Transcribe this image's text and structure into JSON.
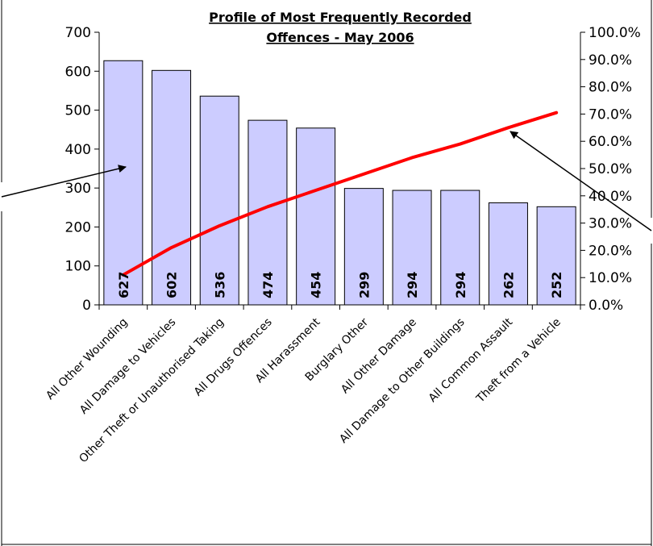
{
  "chart_data": {
    "type": "bar",
    "title": [
      "Profile of Most Frequently Recorded",
      "Offences - May 2006"
    ],
    "categories": [
      "All Other Wounding",
      "All Damage to Vehicles",
      "Other Theft or Unauthorised Taking",
      "All Drugs Offences",
      "All Harassment",
      "Burglary Other",
      "All Other Damage",
      "All Damage to Other Buildings",
      "All Common Assault",
      "Theft from a Vehicle"
    ],
    "values": [
      627,
      602,
      536,
      474,
      454,
      299,
      294,
      294,
      262,
      252
    ],
    "data_labels": [
      "627",
      "602",
      "536",
      "474",
      "454",
      "299",
      "294",
      "294",
      "262",
      "252"
    ],
    "line_series": [
      11,
      21,
      29,
      36,
      42,
      48,
      54,
      59,
      65,
      70.5
    ],
    "ylim": [
      0,
      700
    ],
    "yticks": [
      "0",
      "100",
      "200",
      "300",
      "400",
      "500",
      "600",
      "700"
    ],
    "y2lim": [
      0,
      100
    ],
    "y2ticks": [
      "0.0%",
      "10.0%",
      "20.0%",
      "30.0%",
      "40.0%",
      "50.0%",
      "60.0%",
      "70.0%",
      "80.0%",
      "90.0%",
      "100.0%"
    ],
    "grid": false,
    "colors": {
      "bar_fill": "#CCCCFF",
      "bar_stroke": "#000000",
      "line": "#FF0000",
      "axis": "#000000"
    }
  }
}
